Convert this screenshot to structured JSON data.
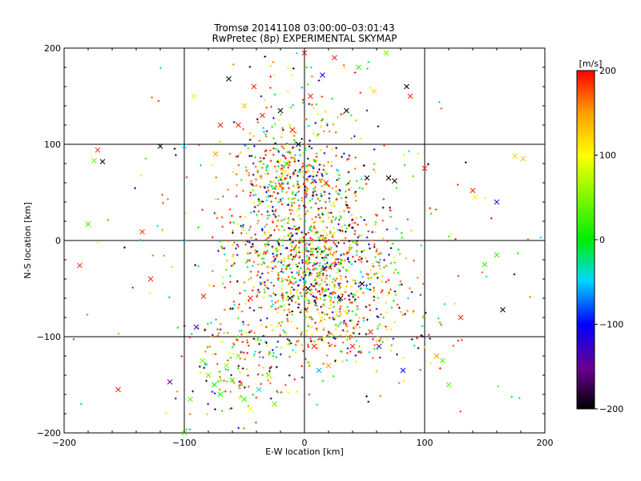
{
  "chart_data": {
    "type": "scatter",
    "title": "Tromsø 20141108 03:00:00–03:01:43",
    "subtitle": "RwPretec (8p) EXPERIMENTAL SKYMAP",
    "xlabel": "E-W location [km]",
    "ylabel": "N-S location [km]",
    "xlim": [
      -200,
      200
    ],
    "ylim": [
      -200,
      200
    ],
    "xticks": [
      "-200",
      "-100",
      "0",
      "100",
      "200"
    ],
    "yticks": [
      "-200",
      "-100",
      "0",
      "100",
      "200"
    ],
    "grid": true,
    "colorbar": {
      "label": "[m/s]",
      "range": [
        -200,
        200
      ],
      "ticks": [
        "200",
        "100",
        "0",
        "-100",
        "-200"
      ]
    },
    "marker_types": [
      "x (large)",
      "+ (small)"
    ],
    "series": [
      {
        "marker": "x",
        "points": [
          {
            "x": -187,
            "y": -26,
            "v": 190
          },
          {
            "x": -172,
            "y": 94,
            "v": 190
          },
          {
            "x": -175,
            "y": 83,
            "v": 40
          },
          {
            "x": -168,
            "y": 82,
            "v": -200
          },
          {
            "x": -180,
            "y": 17,
            "v": 20
          },
          {
            "x": -155,
            "y": -155,
            "v": 190
          },
          {
            "x": -135,
            "y": 9,
            "v": 190
          },
          {
            "x": -128,
            "y": -40,
            "v": 190
          },
          {
            "x": -120,
            "y": 98,
            "v": -200
          },
          {
            "x": -112,
            "y": -147,
            "v": -150
          },
          {
            "x": -100,
            "y": 98,
            "v": -50
          },
          {
            "x": -92,
            "y": 150,
            "v": 90
          },
          {
            "x": -90,
            "y": -90,
            "v": -130
          },
          {
            "x": -84,
            "y": -58,
            "v": 190
          },
          {
            "x": -74,
            "y": 90,
            "v": 150
          },
          {
            "x": -70,
            "y": 120,
            "v": 190
          },
          {
            "x": -63,
            "y": 168,
            "v": -200
          },
          {
            "x": -55,
            "y": 120,
            "v": 190
          },
          {
            "x": -50,
            "y": 140,
            "v": 130
          },
          {
            "x": -45,
            "y": -60,
            "v": 190
          },
          {
            "x": -42,
            "y": 160,
            "v": 190
          },
          {
            "x": -35,
            "y": 130,
            "v": 190
          },
          {
            "x": -20,
            "y": 135,
            "v": -200
          },
          {
            "x": -15,
            "y": 80,
            "v": 20
          },
          {
            "x": -12,
            "y": -60,
            "v": -200
          },
          {
            "x": -10,
            "y": 115,
            "v": 190
          },
          {
            "x": -5,
            "y": 100,
            "v": -200
          },
          {
            "x": 0,
            "y": 195,
            "v": 190
          },
          {
            "x": 3,
            "y": -50,
            "v": -200
          },
          {
            "x": 5,
            "y": 150,
            "v": 190
          },
          {
            "x": 8,
            "y": -110,
            "v": 190
          },
          {
            "x": 12,
            "y": -135,
            "v": -60
          },
          {
            "x": 15,
            "y": 172,
            "v": -100
          },
          {
            "x": 18,
            "y": 60,
            "v": 190
          },
          {
            "x": 20,
            "y": -130,
            "v": 150
          },
          {
            "x": 25,
            "y": 190,
            "v": 190
          },
          {
            "x": 30,
            "y": -60,
            "v": -200
          },
          {
            "x": 35,
            "y": 135,
            "v": -200
          },
          {
            "x": 40,
            "y": -110,
            "v": 190
          },
          {
            "x": 45,
            "y": 180,
            "v": 20
          },
          {
            "x": 48,
            "y": -45,
            "v": -200
          },
          {
            "x": 52,
            "y": 65,
            "v": -200
          },
          {
            "x": 55,
            "y": -95,
            "v": 190
          },
          {
            "x": 58,
            "y": 155,
            "v": 120
          },
          {
            "x": 62,
            "y": -110,
            "v": -150
          },
          {
            "x": 68,
            "y": 195,
            "v": 40
          },
          {
            "x": 70,
            "y": 65,
            "v": -200
          },
          {
            "x": 75,
            "y": 62,
            "v": -200
          },
          {
            "x": 82,
            "y": -135,
            "v": -100
          },
          {
            "x": 85,
            "y": 160,
            "v": -200
          },
          {
            "x": 88,
            "y": 150,
            "v": 190
          },
          {
            "x": 100,
            "y": 75,
            "v": 190
          },
          {
            "x": 110,
            "y": -120,
            "v": 150
          },
          {
            "x": 115,
            "y": -125,
            "v": 40
          },
          {
            "x": 120,
            "y": -150,
            "v": 40
          },
          {
            "x": 130,
            "y": -80,
            "v": 190
          },
          {
            "x": 140,
            "y": 52,
            "v": 190
          },
          {
            "x": 142,
            "y": 45,
            "v": 100
          },
          {
            "x": 150,
            "y": -25,
            "v": 20
          },
          {
            "x": 160,
            "y": 40,
            "v": -130
          },
          {
            "x": 165,
            "y": -72,
            "v": -200
          },
          {
            "x": 175,
            "y": 88,
            "v": 120
          },
          {
            "x": 182,
            "y": 85,
            "v": 130
          },
          {
            "x": -80,
            "y": -140,
            "v": 40
          },
          {
            "x": -75,
            "y": -150,
            "v": 0
          },
          {
            "x": -70,
            "y": -160,
            "v": 10
          },
          {
            "x": -65,
            "y": -130,
            "v": 60
          },
          {
            "x": -60,
            "y": -145,
            "v": 20
          },
          {
            "x": -55,
            "y": -120,
            "v": 50
          },
          {
            "x": -50,
            "y": -165,
            "v": 20
          },
          {
            "x": -45,
            "y": -175,
            "v": 100
          },
          {
            "x": -38,
            "y": -155,
            "v": -40
          },
          {
            "x": -30,
            "y": -140,
            "v": 60
          },
          {
            "x": -25,
            "y": -170,
            "v": 40
          },
          {
            "x": -95,
            "y": -165,
            "v": 40
          },
          {
            "x": -85,
            "y": -125,
            "v": 50
          },
          {
            "x": -20,
            "y": 65,
            "v": 60
          },
          {
            "x": -25,
            "y": 55,
            "v": 40
          },
          {
            "x": -18,
            "y": 72,
            "v": 90
          },
          {
            "x": 160,
            "y": -15,
            "v": 20
          },
          {
            "x": -100,
            "y": -200,
            "v": 40
          }
        ]
      },
      {
        "marker": "+",
        "points": []
      }
    ]
  }
}
